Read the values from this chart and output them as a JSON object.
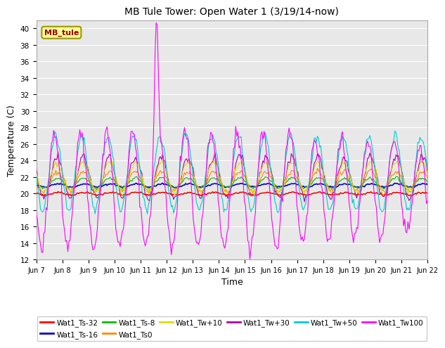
{
  "title": "MB Tule Tower: Open Water 1 (3/19/14-now)",
  "xlabel": "Time",
  "ylabel": "Temperature (C)",
  "ylim": [
    12,
    41
  ],
  "yticks": [
    12,
    14,
    16,
    18,
    20,
    22,
    24,
    26,
    28,
    30,
    32,
    34,
    36,
    38,
    40
  ],
  "x_tick_labels": [
    "Jun 7",
    "Jun 8",
    "Jun 9",
    "Jun 10",
    "Jun 11",
    "Jun 12",
    "Jun 13",
    "Jun 14",
    "Jun 15",
    "Jun 16",
    "Jun 17",
    "Jun 18",
    "Jun 19",
    "Jun 20",
    "Jun 21",
    "Jun 22"
  ],
  "annotation_text": "MB_tule",
  "series_colors": {
    "Wat1_Ts-32": "#ff0000",
    "Wat1_Ts-16": "#0000cc",
    "Wat1_Ts-8": "#00bb00",
    "Wat1_Ts0": "#ff8800",
    "Wat1_Tw+10": "#dddd00",
    "Wat1_Tw+30": "#aa00aa",
    "Wat1_Tw+50": "#00cccc",
    "Wat1_Tw100": "#ff00ff"
  },
  "legend_order": [
    "Wat1_Ts-32",
    "Wat1_Ts-16",
    "Wat1_Ts-8",
    "Wat1_Ts0",
    "Wat1_Tw+10",
    "Wat1_Tw+30",
    "Wat1_Tw+50",
    "Wat1_Tw100"
  ],
  "background_color": "#ffffff",
  "plot_bg_color": "#e8e8e8",
  "grid_color": "#ffffff"
}
